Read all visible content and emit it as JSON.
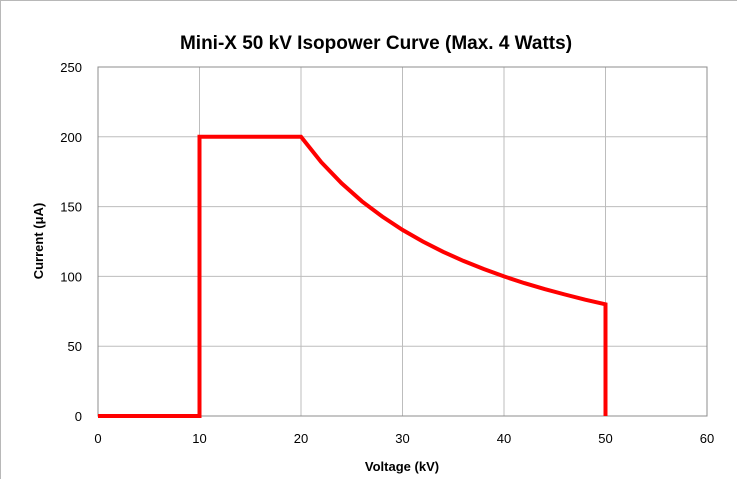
{
  "chart_data": {
    "type": "line",
    "title": "Mini-X 50 kV Isopower Curve (Max. 4 Watts)",
    "xlabel": "Voltage (kV)",
    "ylabel": "Current (μA)",
    "xlim": [
      0,
      60
    ],
    "ylim": [
      0,
      250
    ],
    "x_ticks": [
      0,
      10,
      20,
      30,
      40,
      50,
      60
    ],
    "y_ticks": [
      0,
      50,
      100,
      150,
      200,
      250
    ],
    "grid": true,
    "legend": "none",
    "series": [
      {
        "color": "#ff0000",
        "points": [
          [
            0,
            0
          ],
          [
            10,
            0
          ],
          [
            10,
            200
          ],
          [
            20,
            200
          ],
          [
            22,
            181.8
          ],
          [
            24,
            166.7
          ],
          [
            26,
            153.8
          ],
          [
            28,
            142.9
          ],
          [
            30,
            133.3
          ],
          [
            32,
            125
          ],
          [
            34,
            117.6
          ],
          [
            36,
            111.1
          ],
          [
            38,
            105.3
          ],
          [
            40,
            100
          ],
          [
            42,
            95.2
          ],
          [
            44,
            90.9
          ],
          [
            46,
            87
          ],
          [
            48,
            83.3
          ],
          [
            50,
            80
          ],
          [
            50,
            0
          ]
        ]
      }
    ]
  }
}
